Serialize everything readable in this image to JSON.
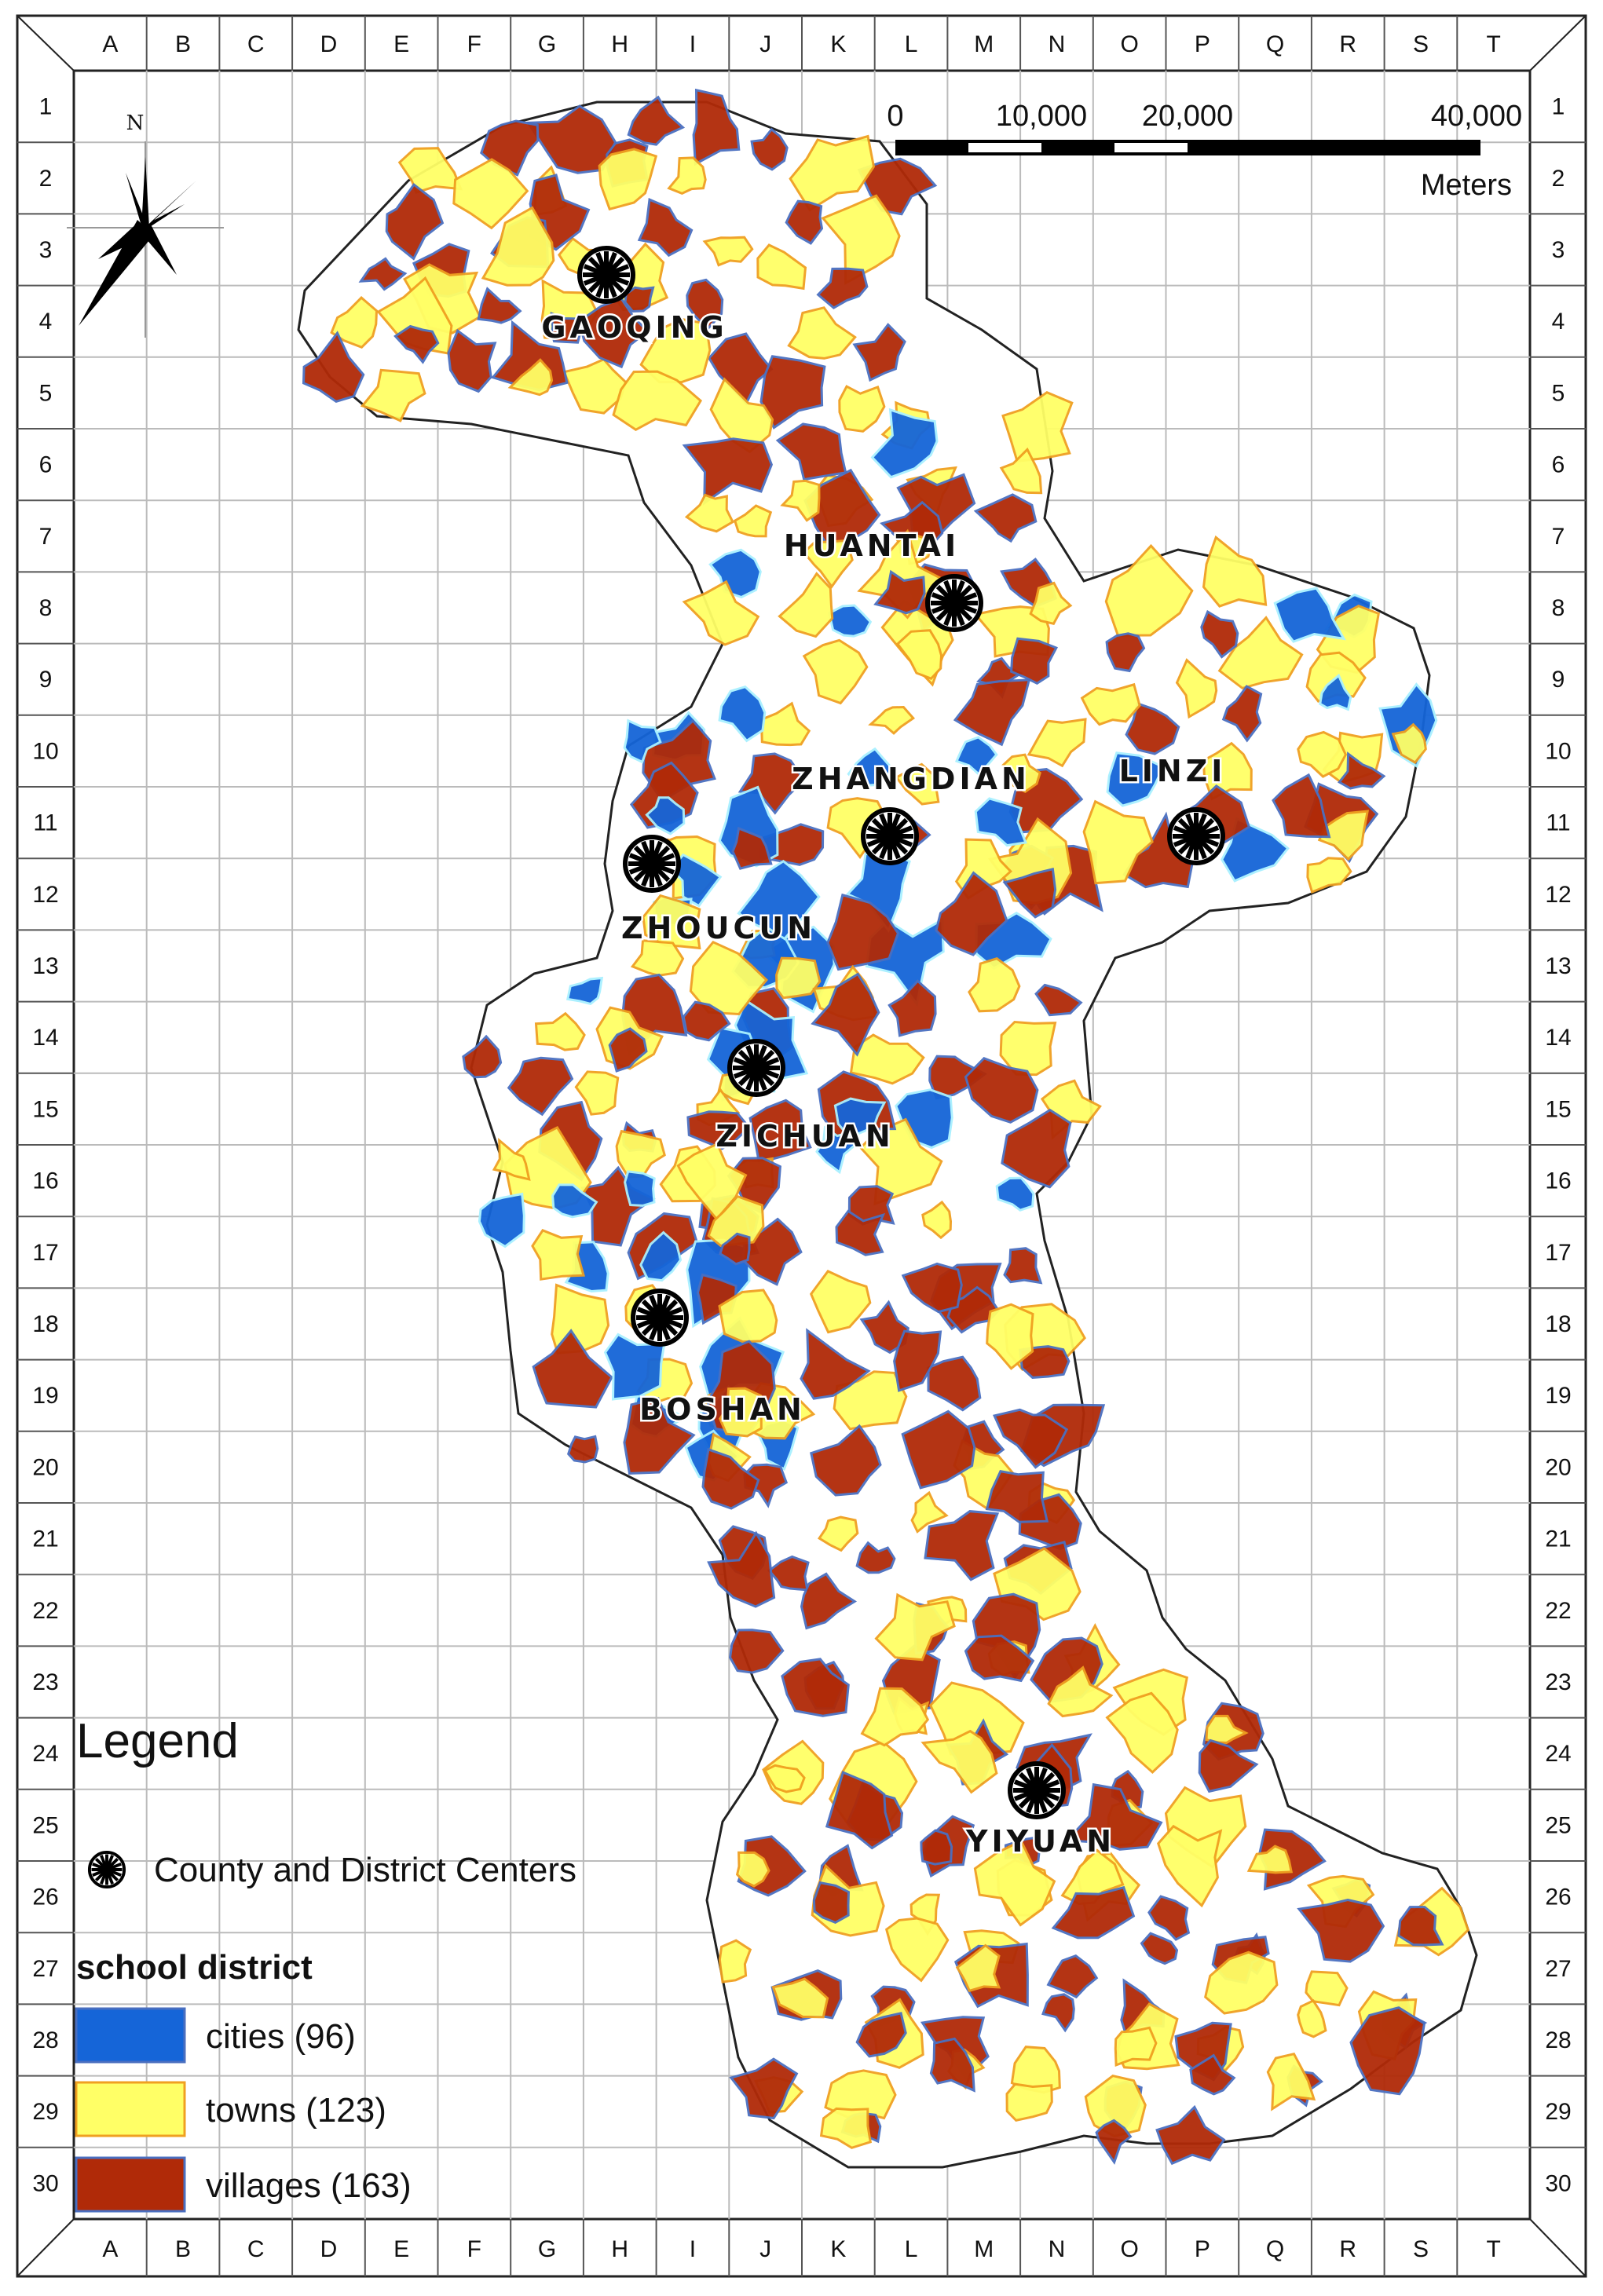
{
  "map": {
    "column_labels": [
      "A",
      "B",
      "C",
      "D",
      "E",
      "F",
      "G",
      "H",
      "I",
      "J",
      "K",
      "L",
      "M",
      "N",
      "O",
      "P",
      "Q",
      "R",
      "S",
      "T"
    ],
    "row_labels": [
      "1",
      "2",
      "3",
      "4",
      "5",
      "6",
      "7",
      "8",
      "9",
      "10",
      "11",
      "12",
      "13",
      "14",
      "15",
      "16",
      "17",
      "18",
      "19",
      "20",
      "21",
      "22",
      "23",
      "24",
      "25",
      "26",
      "27",
      "28",
      "29",
      "30"
    ],
    "north_label": "N",
    "scale_bar": {
      "ticks": [
        "0",
        "10,000",
        "20,000",
        "40,000"
      ],
      "unit": "Meters"
    },
    "districts": [
      {
        "name": "GAOQING"
      },
      {
        "name": "HUANTAI"
      },
      {
        "name": "ZHANGDIAN"
      },
      {
        "name": "LINZI"
      },
      {
        "name": "ZHOUCUN"
      },
      {
        "name": "ZICHUAN"
      },
      {
        "name": "BOSHAN"
      },
      {
        "name": "YIYUAN"
      }
    ],
    "colors": {
      "cities": "#1565d8",
      "towns": "#ffff66",
      "villages": "#b02a08",
      "border": "#222222",
      "grid": "#bbbbbb",
      "town_outline": "#f0a020",
      "village_outline": "#4a6fc0"
    }
  },
  "legend": {
    "title": "Legend",
    "center_icon": "county-center-icon",
    "center_label": "County and District Centers",
    "section_title": "school district",
    "items": [
      {
        "label": "cities (96)",
        "color": "#1565d8"
      },
      {
        "label": "towns (123)",
        "color": "#ffff66"
      },
      {
        "label": "villages (163)",
        "color": "#b02a08"
      }
    ]
  }
}
